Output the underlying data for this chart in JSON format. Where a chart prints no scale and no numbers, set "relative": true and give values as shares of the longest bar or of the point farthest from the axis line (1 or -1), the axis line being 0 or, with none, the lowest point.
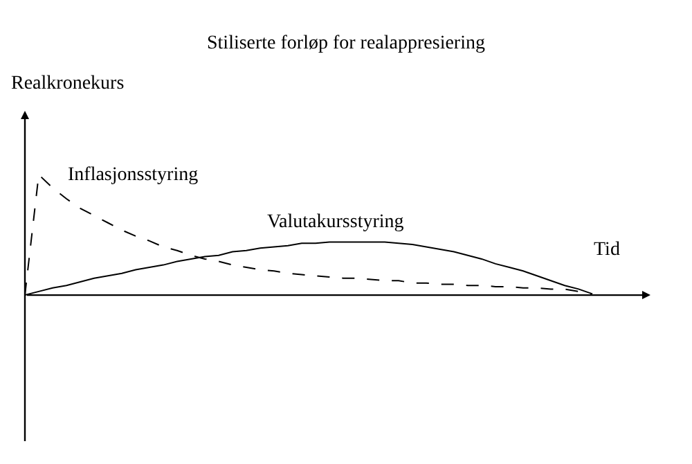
{
  "chart_data": {
    "type": "line",
    "title": "Stiliserte forløp for realappresiering",
    "xlabel": "Tid",
    "ylabel": "Realkronekurs",
    "relative": true,
    "legend": false,
    "marker": "none",
    "categories": [
      null,
      null,
      null,
      null,
      null,
      null,
      null,
      null,
      null,
      null,
      null,
      null,
      null,
      null,
      null,
      null,
      null,
      null,
      null,
      null,
      null,
      null,
      null,
      null,
      null,
      null,
      null,
      null,
      null,
      null,
      null,
      null,
      null,
      null,
      null,
      null,
      null,
      null,
      null,
      null,
      null,
      null
    ],
    "series": [
      {
        "name": "Inflasjonsstyring",
        "color": "#000000",
        "line_style": "dashed",
        "values": [
          0,
          1.0,
          0.89,
          0.8,
          0.72,
          0.66,
          0.6,
          0.54,
          0.49,
          0.45,
          0.4,
          0.37,
          0.33,
          0.3,
          0.28,
          0.25,
          0.23,
          0.21,
          0.2,
          0.18,
          0.17,
          0.16,
          0.15,
          0.14,
          0.14,
          0.13,
          0.12,
          0.12,
          0.1,
          0.1,
          0.09,
          0.09,
          0.08,
          0.08,
          0.07,
          0.07,
          0.06,
          0.06,
          0.05,
          0.05,
          0.03,
          0.01
        ]
      },
      {
        "name": "Valutakursstyring",
        "color": "#000000",
        "line_style": "solid",
        "values": [
          0,
          0.03,
          0.06,
          0.08,
          0.11,
          0.14,
          0.16,
          0.18,
          0.21,
          0.23,
          0.25,
          0.28,
          0.3,
          0.32,
          0.33,
          0.36,
          0.37,
          0.39,
          0.4,
          0.41,
          0.43,
          0.43,
          0.44,
          0.44,
          0.44,
          0.44,
          0.44,
          0.43,
          0.42,
          0.4,
          0.38,
          0.36,
          0.33,
          0.3,
          0.26,
          0.23,
          0.2,
          0.16,
          0.12,
          0.08,
          0.05,
          0.01
        ]
      }
    ]
  }
}
